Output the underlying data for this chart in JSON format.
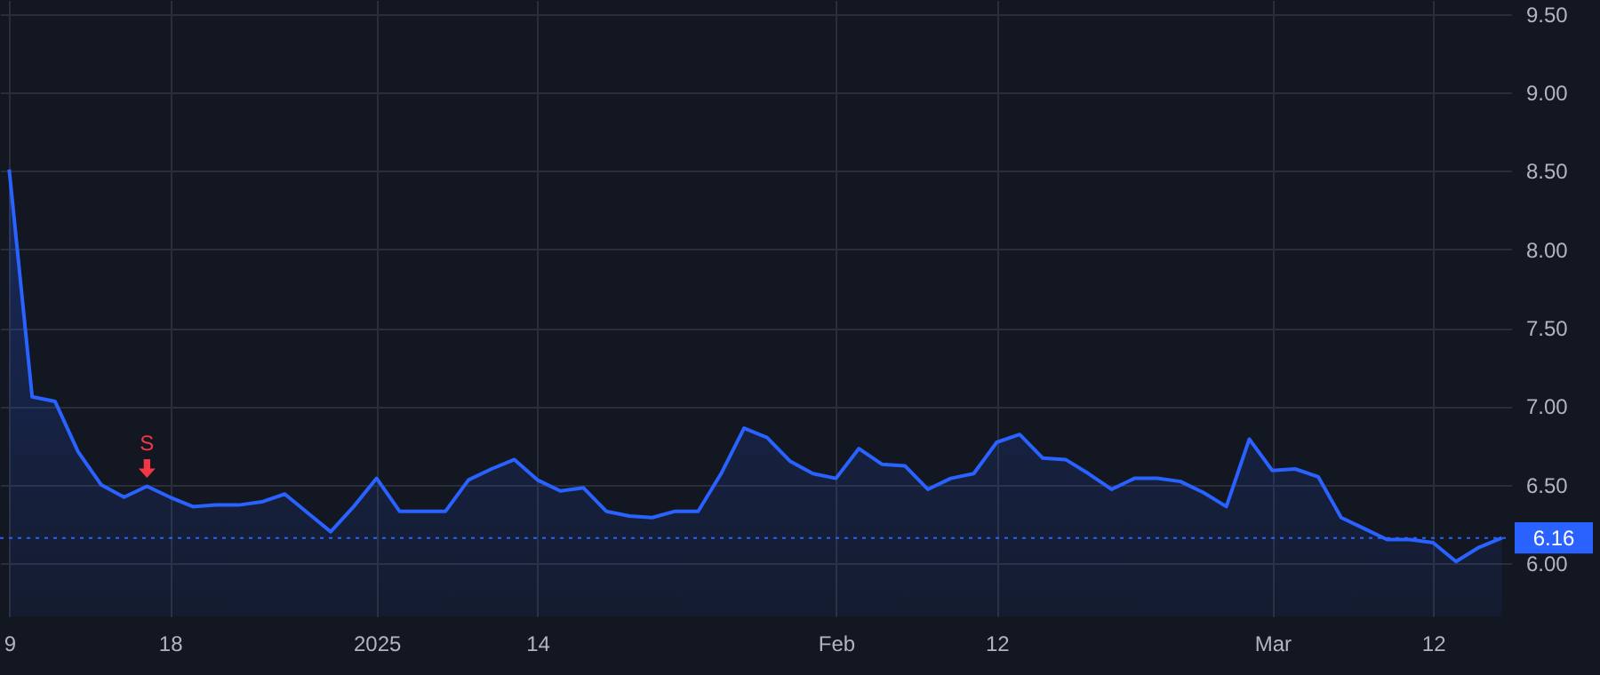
{
  "chart_data": {
    "type": "area",
    "categories": [
      "9",
      null,
      null,
      null,
      null,
      null,
      null,
      "18",
      null,
      null,
      null,
      null,
      null,
      null,
      null,
      null,
      "2025",
      null,
      null,
      null,
      null,
      null,
      null,
      "14",
      null,
      null,
      null,
      null,
      null,
      null,
      null,
      null,
      null,
      null,
      null,
      null,
      "Feb",
      null,
      null,
      null,
      null,
      null,
      null,
      "12",
      null,
      null,
      null,
      null,
      null,
      null,
      null,
      null,
      null,
      null,
      null,
      "Mar",
      null,
      null,
      null,
      null,
      null,
      null,
      "12",
      null,
      null,
      null
    ],
    "series": [
      {
        "color": "#2962ff",
        "values": [
          8.51,
          7.06,
          7.03,
          6.71,
          6.5,
          6.42,
          6.49,
          6.42,
          6.36,
          6.37,
          6.37,
          6.39,
          6.44,
          6.32,
          6.2,
          6.36,
          6.54,
          6.33,
          6.33,
          6.33,
          6.53,
          6.6,
          6.66,
          6.53,
          6.46,
          6.48,
          6.33,
          6.3,
          6.29,
          6.33,
          6.33,
          6.57,
          6.86,
          6.8,
          6.65,
          6.57,
          6.54,
          6.73,
          6.63,
          6.62,
          6.47,
          6.54,
          6.57,
          6.77,
          6.82,
          6.67,
          6.66,
          6.57,
          6.47,
          6.54,
          6.54,
          6.52,
          6.45,
          6.36,
          6.79,
          6.59,
          6.6,
          6.55,
          6.29,
          6.22,
          6.15,
          6.15,
          6.13,
          6.01,
          6.1,
          6.16
        ]
      }
    ],
    "ylim": [
      5.66,
      9.59
    ],
    "yticks": [
      {
        "value": 6,
        "label": "6.00"
      },
      {
        "value": 6.5,
        "label": "6.50"
      },
      {
        "value": 7,
        "label": "7.00"
      },
      {
        "value": 7.5,
        "label": "7.50"
      },
      {
        "value": 8,
        "label": "8.00"
      },
      {
        "value": 8.5,
        "label": "8.50"
      },
      {
        "value": 9,
        "label": "9.00"
      },
      {
        "value": 9.5,
        "label": "9.50"
      }
    ],
    "ref_lines": [
      {
        "axis": "y",
        "value": 6.16,
        "label": "6.16",
        "color": "#2962ff",
        "line_style": "dotted"
      }
    ],
    "annotations": [
      {
        "text": "S",
        "y": 6.49
      }
    ],
    "grid": true,
    "marker": "none",
    "line_style": "solid"
  }
}
